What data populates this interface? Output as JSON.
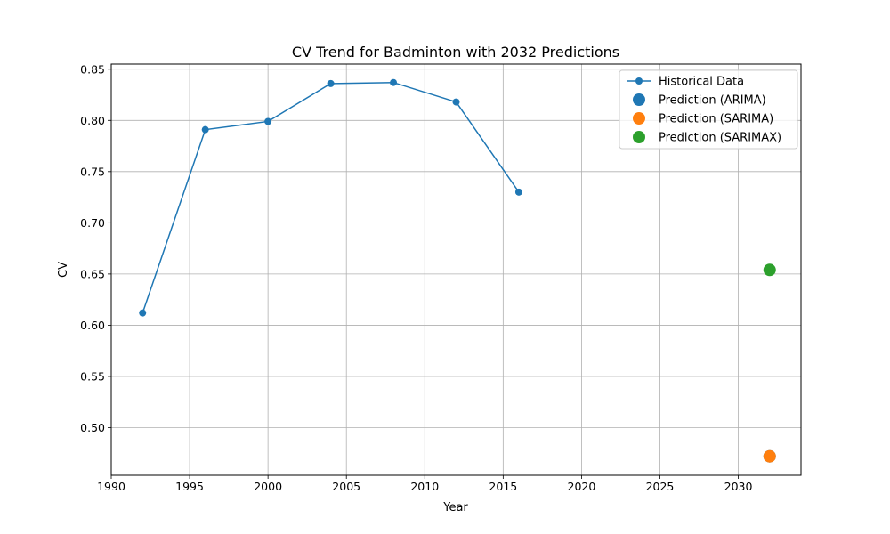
{
  "chart_data": {
    "type": "line",
    "title": "CV Trend for Badminton with 2032 Predictions",
    "xlabel": "Year",
    "ylabel": "CV",
    "xlim": [
      1990,
      2034
    ],
    "ylim": [
      0.4535,
      0.855
    ],
    "xticks": [
      1990,
      1995,
      2000,
      2005,
      2010,
      2015,
      2020,
      2025,
      2030
    ],
    "xtick_labels": [
      "1990",
      "1995",
      "2000",
      "2005",
      "2010",
      "2015",
      "2020",
      "2025",
      "2030"
    ],
    "yticks": [
      0.5,
      0.55,
      0.6,
      0.65,
      0.7,
      0.75,
      0.8,
      0.85
    ],
    "ytick_labels": [
      "0.50",
      "0.55",
      "0.60",
      "0.65",
      "0.70",
      "0.75",
      "0.80",
      "0.85"
    ],
    "grid": true,
    "legend_position": "top-right",
    "series": [
      {
        "name": "Historical Data",
        "kind": "line-marker",
        "color": "#1f77b4",
        "x": [
          1992,
          1996,
          2000,
          2004,
          2008,
          2012,
          2016
        ],
        "y": [
          0.612,
          0.791,
          0.799,
          0.836,
          0.837,
          0.818,
          0.73
        ]
      },
      {
        "name": "Prediction (ARIMA)",
        "kind": "point",
        "color": "#1f77b4",
        "x": [
          2032
        ],
        "y": [
          0.472
        ]
      },
      {
        "name": "Prediction (SARIMA)",
        "kind": "point",
        "color": "#ff7f0e",
        "x": [
          2032
        ],
        "y": [
          0.472
        ]
      },
      {
        "name": "Prediction (SARIMAX)",
        "kind": "point",
        "color": "#2ca02c",
        "x": [
          2032
        ],
        "y": [
          0.654
        ]
      }
    ]
  }
}
